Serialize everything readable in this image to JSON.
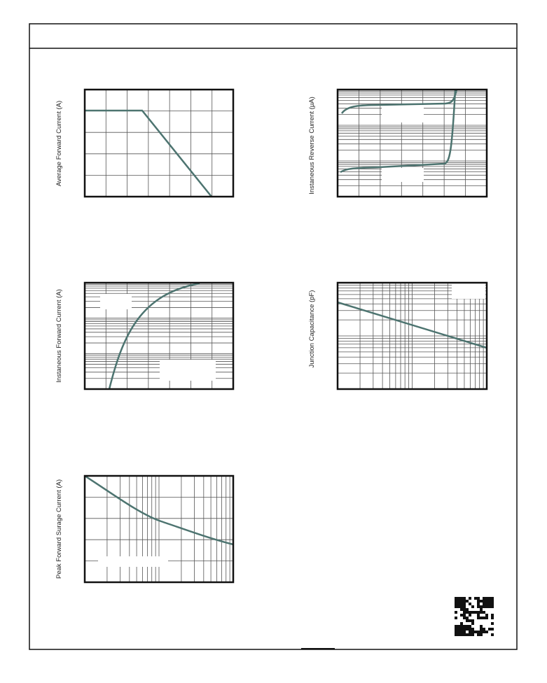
{
  "charts": [
    {
      "ylabel": "Average Forward Current (A)"
    },
    {
      "ylabel": "Instaneous Reverse Current (μA)"
    },
    {
      "ylabel": "Instaneous Forward Current (A)"
    },
    {
      "ylabel": "Junction Capacitance (pF)"
    },
    {
      "ylabel": "Peak Forward Surage Current (A)"
    }
  ]
}
